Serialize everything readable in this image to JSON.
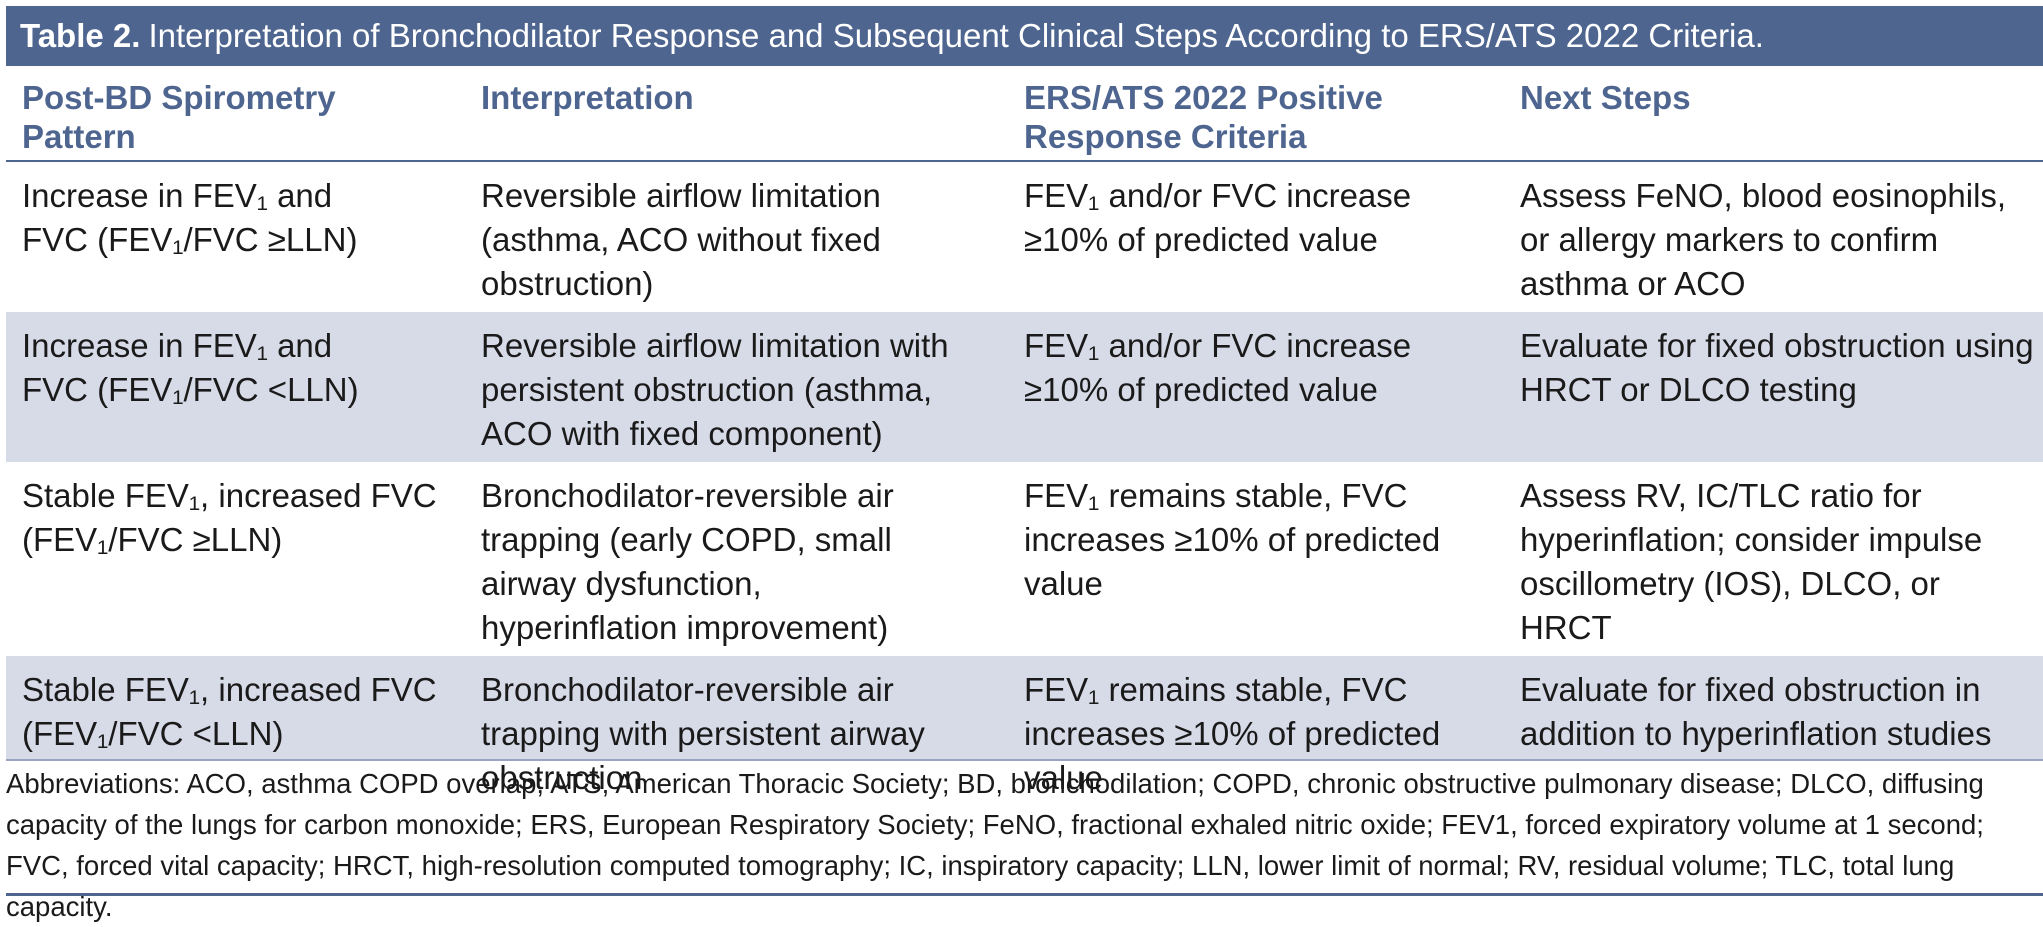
{
  "table": {
    "title_label": "Table 2.",
    "title_text": "Interpretation of Bronchodilator Response and Subsequent Clinical Steps According to ERS/ATS 2022 Criteria.",
    "columns": [
      "Post-BD Spirometry Pattern",
      "Interpretation",
      "ERS/ATS 2022 Positive Response Criteria",
      "Next Steps"
    ],
    "rows": [
      {
        "pattern": "Increase in FEV₁ and FVC (FEV₁/FVC ≥LLN)",
        "interpretation": "Reversible airflow limitation (asthma, ACO without fixed obstruction)",
        "criteria": "FEV₁ and/or FVC increase ≥10% of predicted value",
        "next_steps": "Assess FeNO, blood eosinophils, or allergy markers to confirm asthma or ACO"
      },
      {
        "pattern": "Increase in FEV₁ and FVC (FEV₁/FVC <LLN)",
        "interpretation": "Reversible airflow limitation with persistent obstruction (asthma, ACO with fixed component)",
        "criteria": "FEV₁ and/or FVC increase ≥10% of predicted value",
        "next_steps": "Evaluate for fixed obstruction using HRCT or DLCO testing"
      },
      {
        "pattern": "Stable FEV₁, increased FVC (FEV₁/FVC ≥LLN)",
        "interpretation": "Bronchodilator-reversible air trapping (early COPD, small airway dysfunction, hyperinflation improvement)",
        "criteria": "FEV₁ remains stable, FVC increases ≥10% of predicted value",
        "next_steps": "Assess RV, IC/TLC ratio for hyperinflation; consider impulse oscillometry (IOS), DLCO, or HRCT"
      },
      {
        "pattern": "Stable FEV₁, increased FVC (FEV₁/FVC <LLN)",
        "interpretation": "Bronchodilator-reversible air trapping with persistent airway obstruction",
        "criteria": "FEV₁ remains stable, FVC increases ≥10% of predicted value",
        "next_steps": "Evaluate for fixed obstruction in addition to hyperinflation studies"
      }
    ],
    "abbreviations": "Abbreviations: ACO, asthma COPD overlap; ATS, American Thoracic Society; BD, bronchodilation; COPD, chronic obstructive pulmonary disease; DLCO, diffusing capacity of the lungs for carbon monoxide; ERS, European Respiratory Society; FeNO, fractional exhaled nitric oxide; FEV1, forced expiratory volume at 1 second; FVC, forced vital capacity; HRCT, high-resolution computed tomography; IC, inspiratory capacity; LLN, lower limit of normal; RV, residual volume; TLC, total lung capacity."
  },
  "colors": {
    "header_band": "#4e6590",
    "header_text": "#4e6590",
    "shaded_row": "#d7dbe8"
  }
}
